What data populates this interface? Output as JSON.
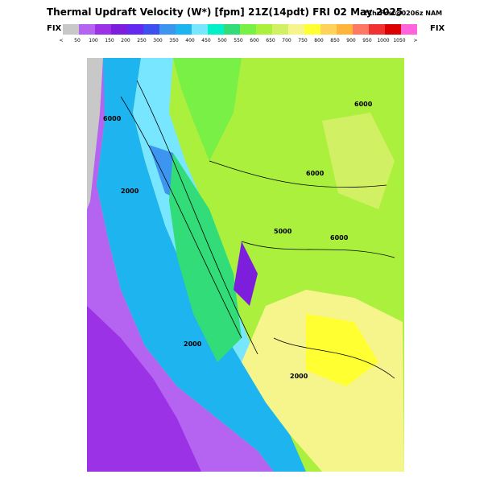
{
  "header": {
    "title": "Thermal Updraft Velocity (W*) [fpm] 21Z(14pdt) FRI 02 May 2025",
    "subtitle": "21hrFcst@0206z NAM",
    "left_label": "FIX",
    "right_label": "FIX"
  },
  "scale": {
    "labels": [
      "<",
      "50",
      "100",
      "150",
      "200",
      "250",
      "300",
      "350",
      "400",
      "450",
      "500",
      "550",
      "600",
      "650",
      "700",
      "750",
      "800",
      "850",
      "900",
      "950",
      "1000",
      "1050",
      ">"
    ],
    "colors": [
      "#c8c8c8",
      "#b464f0",
      "#9b32e6",
      "#7d1edc",
      "#6428f0",
      "#3c50f0",
      "#3c96f0",
      "#1eb4f0",
      "#78e6ff",
      "#00f0c8",
      "#32dc78",
      "#78f046",
      "#aaf03c",
      "#d2f064",
      "#f5f58c",
      "#ffff32",
      "#ffd25a",
      "#ffb43c",
      "#ff7864",
      "#f03232",
      "#dc0000",
      "#ff64dc",
      "#f01ee6"
    ]
  },
  "map": {
    "contour_labels": [
      "6000",
      "2000",
      "5000",
      "6000",
      "6000",
      "2000",
      "2000",
      "6000"
    ]
  }
}
